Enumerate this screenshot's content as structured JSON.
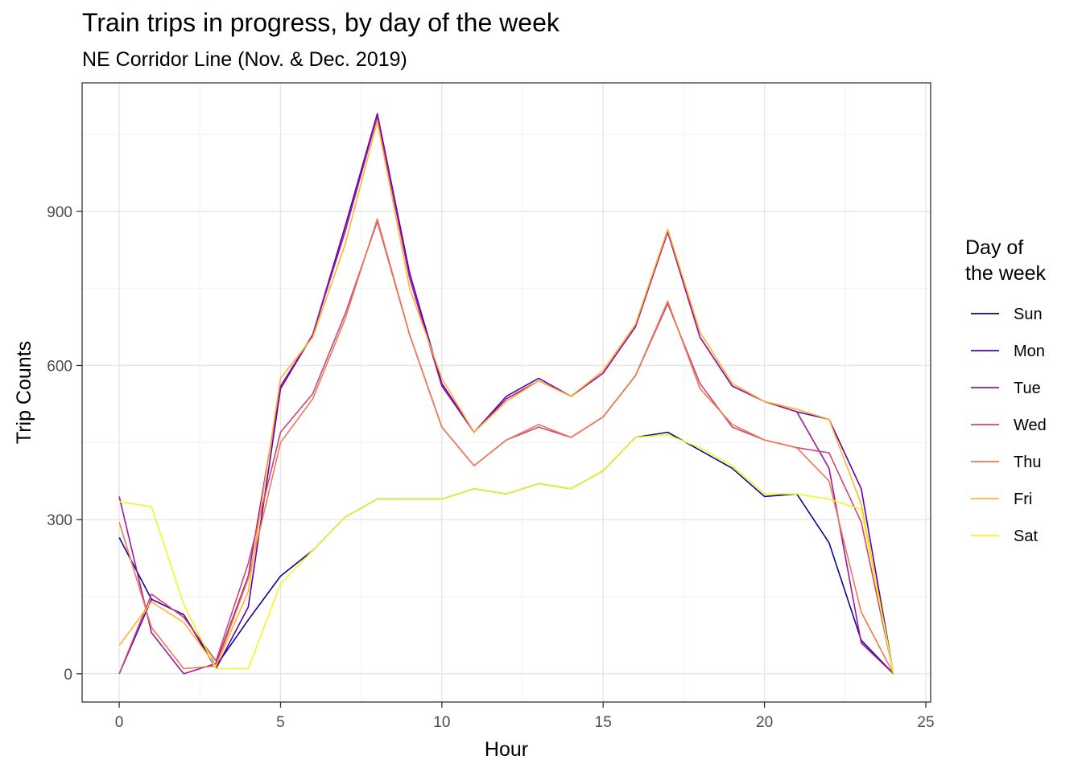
{
  "chart_data": {
    "type": "line",
    "title": "Train trips in progress, by day of the week",
    "subtitle": "NE Corridor Line (Nov. & Dec. 2019)",
    "xlabel": "Hour",
    "ylabel": "Trip Counts",
    "xlim": [
      -1.15,
      25.15
    ],
    "ylim": [
      -55,
      1150
    ],
    "x_ticks": [
      0,
      5,
      10,
      15,
      20,
      25
    ],
    "y_ticks": [
      0,
      300,
      600,
      900
    ],
    "grid": true,
    "legend": {
      "title_lines": [
        "Day of",
        "the week"
      ],
      "position": "right"
    },
    "x": [
      0,
      1,
      2,
      3,
      4,
      5,
      6,
      7,
      8,
      9,
      10,
      11,
      12,
      13,
      14,
      15,
      16,
      17,
      18,
      19,
      20,
      21,
      22,
      23,
      24
    ],
    "series": [
      {
        "name": "Sun",
        "color": "#0d0887",
        "values": [
          265,
          145,
          115,
          15,
          105,
          190,
          240,
          305,
          340,
          340,
          340,
          360,
          350,
          370,
          360,
          395,
          460,
          470,
          435,
          400,
          345,
          350,
          255,
          65,
          0
        ]
      },
      {
        "name": "Mon",
        "color": "#5c01a6",
        "values": [
          0,
          145,
          115,
          10,
          130,
          555,
          660,
          870,
          1090,
          780,
          565,
          470,
          540,
          575,
          540,
          585,
          675,
          860,
          655,
          560,
          530,
          510,
          495,
          360,
          0
        ]
      },
      {
        "name": "Tue",
        "color": "#9c179e",
        "values": [
          345,
          80,
          0,
          20,
          190,
          560,
          660,
          860,
          1085,
          770,
          560,
          470,
          535,
          570,
          540,
          585,
          675,
          860,
          655,
          560,
          530,
          510,
          400,
          60,
          0
        ]
      },
      {
        "name": "Wed",
        "color": "#cc4778",
        "values": [
          0,
          155,
          110,
          25,
          215,
          470,
          545,
          700,
          880,
          660,
          480,
          405,
          455,
          480,
          460,
          500,
          580,
          720,
          565,
          480,
          455,
          440,
          430,
          295,
          0
        ]
      },
      {
        "name": "Thu",
        "color": "#ed7953",
        "values": [
          295,
          90,
          10,
          15,
          185,
          450,
          535,
          690,
          885,
          660,
          480,
          405,
          455,
          485,
          460,
          500,
          580,
          725,
          555,
          485,
          455,
          440,
          375,
          120,
          0
        ]
      },
      {
        "name": "Fri",
        "color": "#fdb42f",
        "values": [
          55,
          140,
          100,
          15,
          160,
          575,
          655,
          835,
          1075,
          750,
          575,
          470,
          530,
          570,
          540,
          590,
          680,
          865,
          665,
          565,
          530,
          515,
          495,
          330,
          0
        ]
      },
      {
        "name": "Sat",
        "color": "#f0f921",
        "values": [
          335,
          325,
          135,
          10,
          10,
          175,
          240,
          305,
          340,
          340,
          340,
          360,
          350,
          370,
          360,
          395,
          460,
          465,
          440,
          405,
          350,
          350,
          340,
          320,
          0
        ]
      }
    ]
  }
}
